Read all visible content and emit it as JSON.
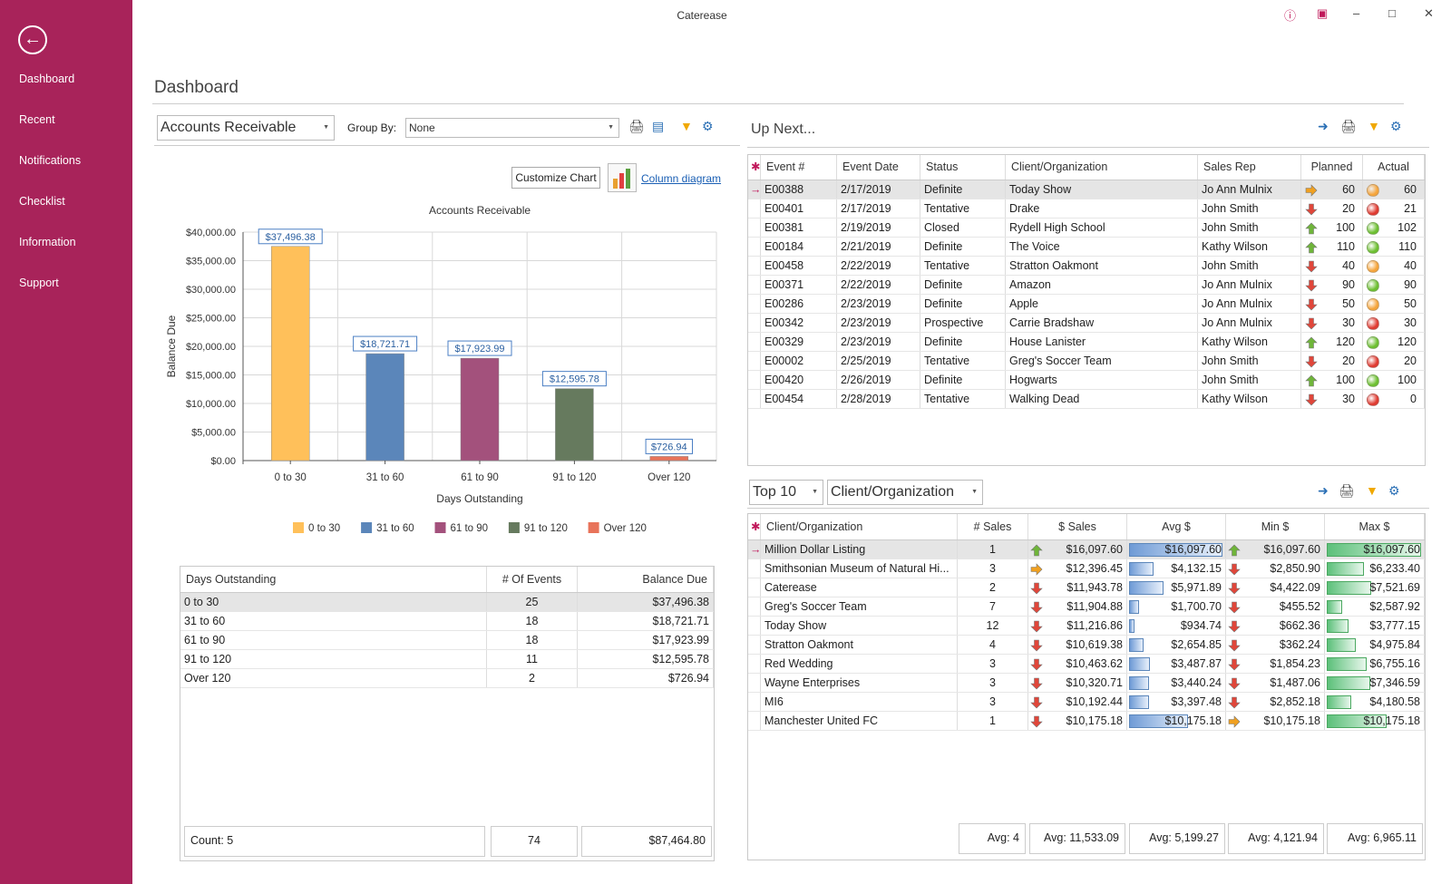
{
  "app": {
    "title": "Caterease"
  },
  "sidebar": {
    "items": [
      "Dashboard",
      "Recent",
      "Notifications",
      "Checklist",
      "Information",
      "Support"
    ]
  },
  "page": {
    "title": "Dashboard"
  },
  "ar": {
    "dropdown": "Accounts Receivable",
    "group_by_label": "Group By:",
    "group_by_value": "None",
    "customize_chart": "Customize Chart",
    "chart_type": "Column diagram"
  },
  "chart_data": {
    "type": "bar",
    "title": "Accounts Receivable",
    "xlabel": "Days Outstanding",
    "ylabel": "Balance Due",
    "ylim": [
      0,
      40000
    ],
    "yticks": [
      "$0.00",
      "$5,000.00",
      "$10,000.00",
      "$15,000.00",
      "$20,000.00",
      "$25,000.00",
      "$30,000.00",
      "$35,000.00",
      "$40,000.00"
    ],
    "categories": [
      "0 to 30",
      "31 to 60",
      "61 to 90",
      "91 to 120",
      "Over 120"
    ],
    "values": [
      37496.38,
      18721.71,
      17923.99,
      12595.78,
      726.94
    ],
    "labels": [
      "$37,496.38",
      "$18,721.71",
      "$17,923.99",
      "$12,595.78",
      "$726.94"
    ],
    "colors": [
      "#ffc05a",
      "#5b86ba",
      "#a3517c",
      "#667a5e",
      "#e8735a"
    ],
    "legend": "bottom",
    "grid": true
  },
  "ar_table": {
    "headers": [
      "Days Outstanding",
      "# Of Events",
      "Balance Due"
    ],
    "rows": [
      [
        "0 to 30",
        "25",
        "$37,496.38"
      ],
      [
        "31 to 60",
        "18",
        "$18,721.71"
      ],
      [
        "61 to 90",
        "18",
        "$17,923.99"
      ],
      [
        "91 to 120",
        "11",
        "$12,595.78"
      ],
      [
        "Over 120",
        "2",
        "$726.94"
      ]
    ],
    "footer": [
      "Count:  5",
      "74",
      "$87,464.80"
    ]
  },
  "upnext": {
    "title": "Up Next...",
    "headers": [
      "Event #",
      "Event Date",
      "Status",
      "Client/Organization",
      "Sales Rep",
      "Planned",
      "Actual"
    ],
    "rows": [
      [
        "E00388",
        "2/17/2019",
        "Definite",
        "Today Show",
        "Jo Ann Mulnix",
        "right",
        "60",
        "orange",
        "60"
      ],
      [
        "E00401",
        "2/17/2019",
        "Tentative",
        "Drake",
        "John Smith",
        "down",
        "20",
        "red",
        "21"
      ],
      [
        "E00381",
        "2/19/2019",
        "Closed",
        "Rydell High School",
        "John Smith",
        "up",
        "100",
        "green",
        "102"
      ],
      [
        "E00184",
        "2/21/2019",
        "Definite",
        "The Voice",
        "Kathy Wilson",
        "up",
        "110",
        "green",
        "110"
      ],
      [
        "E00458",
        "2/22/2019",
        "Tentative",
        "Stratton Oakmont",
        "John Smith",
        "down",
        "40",
        "orange",
        "40"
      ],
      [
        "E00371",
        "2/22/2019",
        "Definite",
        "Amazon",
        "Jo Ann Mulnix",
        "down",
        "90",
        "green",
        "90"
      ],
      [
        "E00286",
        "2/23/2019",
        "Definite",
        "Apple",
        "Jo Ann Mulnix",
        "down",
        "50",
        "orange",
        "50"
      ],
      [
        "E00342",
        "2/23/2019",
        "Prospective",
        "Carrie Bradshaw",
        "Jo Ann Mulnix",
        "down",
        "30",
        "red",
        "30"
      ],
      [
        "E00329",
        "2/23/2019",
        "Definite",
        "House Lanister",
        "Kathy Wilson",
        "up",
        "120",
        "green",
        "120"
      ],
      [
        "E00002",
        "2/25/2019",
        "Tentative",
        "Greg's Soccer Team",
        "John Smith",
        "down",
        "20",
        "red",
        "20"
      ],
      [
        "E00420",
        "2/26/2019",
        "Definite",
        "Hogwarts",
        "John Smith",
        "up",
        "100",
        "green",
        "100"
      ],
      [
        "E00454",
        "2/28/2019",
        "Tentative",
        "Walking Dead",
        "Kathy Wilson",
        "down",
        "30",
        "red",
        "0"
      ]
    ]
  },
  "top10": {
    "count_select": "Top 10",
    "group_select": "Client/Organization",
    "headers": [
      "Client/Organization",
      "# Sales",
      "$ Sales",
      "Avg $",
      "Min $",
      "Max $"
    ],
    "rows": [
      [
        "Million Dollar Listing",
        "1",
        "up",
        "$16,097.60",
        "$16,097.60",
        "up",
        "$16,097.60",
        "$16,097.60",
        1.0,
        1.0
      ],
      [
        "Smithsonian Museum of Natural Hi...",
        "3",
        "right",
        "$12,396.45",
        "$4,132.15",
        "down",
        "$2,850.90",
        "$6,233.40",
        0.26,
        0.39
      ],
      [
        "Caterease",
        "2",
        "down",
        "$11,943.78",
        "$5,971.89",
        "down",
        "$4,422.09",
        "$7,521.69",
        0.37,
        0.47
      ],
      [
        "Greg's Soccer Team",
        "7",
        "down",
        "$11,904.88",
        "$1,700.70",
        "down",
        "$455.52",
        "$2,587.92",
        0.11,
        0.16
      ],
      [
        "Today Show",
        "12",
        "down",
        "$11,216.86",
        "$934.74",
        "down",
        "$662.36",
        "$3,777.15",
        0.06,
        0.23
      ],
      [
        "Stratton Oakmont",
        "4",
        "down",
        "$10,619.38",
        "$2,654.85",
        "down",
        "$362.24",
        "$4,975.84",
        0.16,
        0.31
      ],
      [
        "Red Wedding",
        "3",
        "down",
        "$10,463.62",
        "$3,487.87",
        "down",
        "$1,854.23",
        "$6,755.16",
        0.22,
        0.42
      ],
      [
        "Wayne Enterprises",
        "3",
        "down",
        "$10,320.71",
        "$3,440.24",
        "down",
        "$1,487.06",
        "$7,346.59",
        0.21,
        0.46
      ],
      [
        "MI6",
        "3",
        "down",
        "$10,192.44",
        "$3,397.48",
        "down",
        "$2,852.18",
        "$4,180.58",
        0.21,
        0.26
      ],
      [
        "Manchester United FC",
        "1",
        "down",
        "$10,175.18",
        "$10,175.18",
        "right",
        "$10,175.18",
        "$10,175.18",
        0.63,
        0.63
      ]
    ],
    "footer": [
      "Avg:  4",
      "Avg:  11,533.09",
      "Avg:  5,199.27",
      "Avg:  4,121.94",
      "Avg:  6,965.11"
    ]
  }
}
